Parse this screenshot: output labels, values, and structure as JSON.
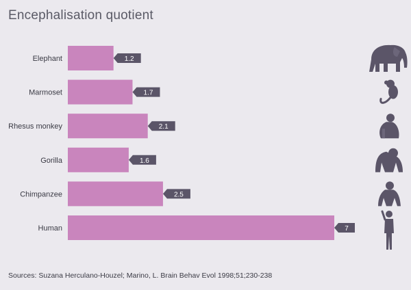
{
  "title": "Encephalisation quotient",
  "source": "Sources: Suzana Herculano-Houzel; Marino, L. Brain Behav Evol 1998;51;230-238",
  "colors": {
    "bar": "#c985bd",
    "label_bg": "#5b5568",
    "label_text": "#ffffff",
    "text": "#3a3a44",
    "silhouette": "#5b5568"
  },
  "chart_data": {
    "type": "bar",
    "orientation": "horizontal",
    "title": "Encephalisation quotient",
    "categories": [
      "Elephant",
      "Marmoset",
      "Rhesus monkey",
      "Gorilla",
      "Chimpanzee",
      "Human"
    ],
    "values": [
      1.2,
      1.7,
      2.1,
      1.6,
      2.5,
      7
    ],
    "value_labels": [
      "1.2",
      "1.7",
      "2.1",
      "1.6",
      "2.5",
      "7"
    ],
    "icons": [
      "elephant-icon",
      "marmoset-icon",
      "rhesus-monkey-icon",
      "gorilla-icon",
      "chimpanzee-icon",
      "human-icon"
    ],
    "xlim": [
      0,
      7
    ],
    "grid": false,
    "legend": "none"
  }
}
